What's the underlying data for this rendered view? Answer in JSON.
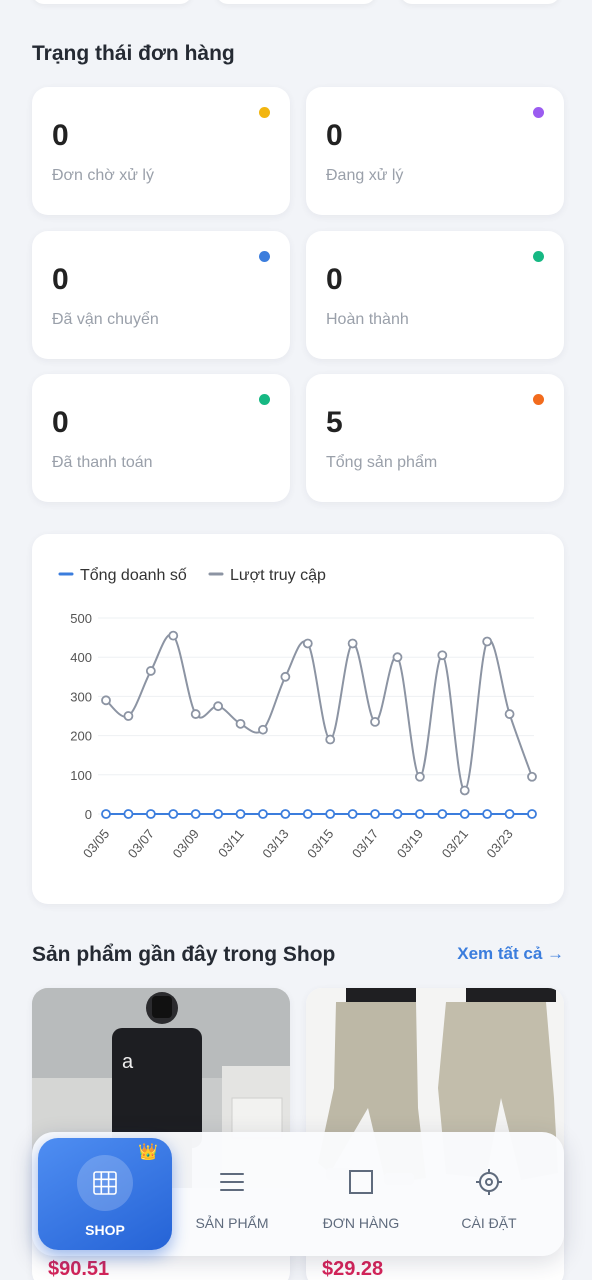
{
  "order_status": {
    "title": "Trạng thái đơn hàng",
    "cards": [
      {
        "value": "0",
        "label": "Đơn chờ xử lý",
        "dot_color": "#f2b50f"
      },
      {
        "value": "0",
        "label": "Đang xử lý",
        "dot_color": "#9b5cf0"
      },
      {
        "value": "0",
        "label": "Đã vận chuyển",
        "dot_color": "#3b7ddd"
      },
      {
        "value": "0",
        "label": "Hoàn thành",
        "dot_color": "#16b883"
      },
      {
        "value": "0",
        "label": "Đã thanh toán",
        "dot_color": "#16b883"
      },
      {
        "value": "5",
        "label": "Tổng sản phẩm",
        "dot_color": "#f26b1d"
      }
    ]
  },
  "chart_data": {
    "type": "line",
    "title": "",
    "legend_position": "top-left",
    "x": [
      "03/05",
      "03/06",
      "03/07",
      "03/08",
      "03/09",
      "03/10",
      "03/11",
      "03/12",
      "03/13",
      "03/14",
      "03/15",
      "03/16",
      "03/17",
      "03/18",
      "03/19",
      "03/20",
      "03/21",
      "03/22",
      "03/23",
      "03/24"
    ],
    "x_tick_labels": [
      "03/05",
      "03/07",
      "03/09",
      "03/11",
      "03/13",
      "03/15",
      "03/17",
      "03/19",
      "03/21",
      "03/23"
    ],
    "y_ticks": [
      "0",
      "100",
      "200",
      "300",
      "400",
      "500"
    ],
    "ylim": [
      0,
      500
    ],
    "grid": true,
    "series": [
      {
        "name": "Tổng doanh số",
        "color": "#3b7ddd",
        "values": [
          0,
          0,
          0,
          0,
          0,
          0,
          0,
          0,
          0,
          0,
          0,
          0,
          0,
          0,
          0,
          0,
          0,
          0,
          0,
          0
        ]
      },
      {
        "name": "Lượt truy cập",
        "color": "#8c94a3",
        "values": [
          290,
          250,
          365,
          455,
          255,
          275,
          230,
          215,
          350,
          435,
          190,
          435,
          235,
          400,
          95,
          405,
          60,
          440,
          255,
          95
        ]
      }
    ]
  },
  "products": {
    "title": "Sản phẩm gần đây trong Shop",
    "view_all": "Xem tất cả →",
    "items": [
      {
        "price": "$90.51"
      },
      {
        "price": "$29.28"
      }
    ]
  },
  "bottom_nav": {
    "items": [
      {
        "label": "SHOP",
        "icon": "grid-icon",
        "active": true
      },
      {
        "label": "SẢN PHẨM",
        "icon": "list-icon"
      },
      {
        "label": "ĐƠN HÀNG",
        "icon": "square-icon"
      },
      {
        "label": "CÀI ĐẶT",
        "icon": "gear-icon"
      }
    ],
    "badge": "👑"
  }
}
